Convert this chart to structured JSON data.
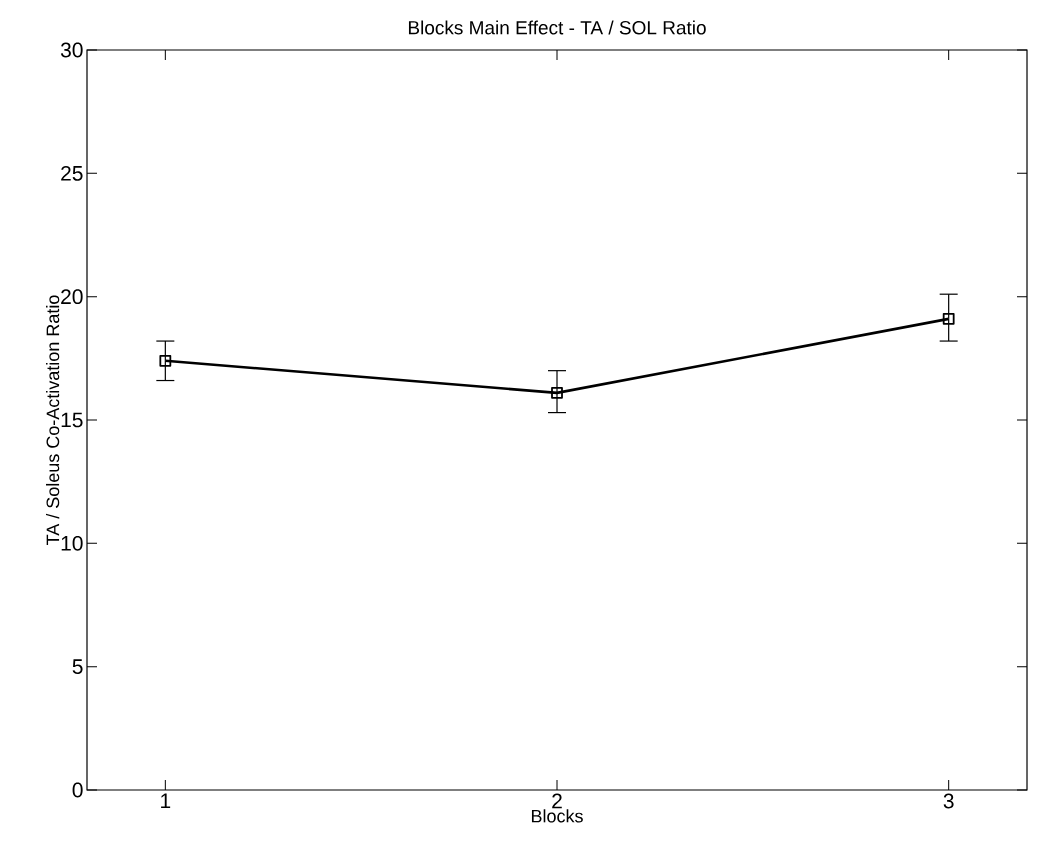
{
  "chart_data": {
    "type": "line",
    "title": "Blocks Main Effect - TA / SOL Ratio",
    "xlabel": "Blocks",
    "ylabel": "TA / Soleus Co-Activation Ratio",
    "x": [
      1,
      2,
      3
    ],
    "series": [
      {
        "color": "#000000",
        "values": [
          17.4,
          16.1,
          19.1
        ],
        "errors": [
          [
            16.6,
            18.2
          ],
          [
            15.3,
            17.0
          ],
          [
            18.2,
            20.1
          ]
        ]
      }
    ],
    "xlim": [
      0.8,
      3.2
    ],
    "xticks": [
      1,
      2,
      3
    ],
    "ylim": [
      0,
      30
    ],
    "yticks": [
      0,
      5,
      10,
      15,
      20,
      25,
      30
    ],
    "grid": false,
    "marker": "square",
    "line_style": "solid"
  }
}
